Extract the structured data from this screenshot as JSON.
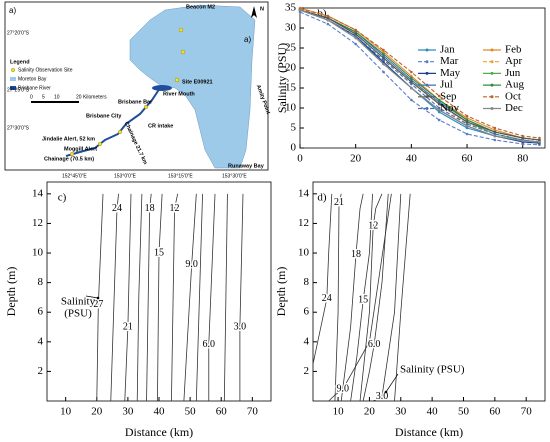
{
  "map": {
    "panel_label": "a)",
    "panel_label_2": "a)",
    "north": "N",
    "places": {
      "beacon": "Beacon M2",
      "site": "Site E00921",
      "mouth": "River Mouth",
      "bar": "Brisbane Bar",
      "intake": "CR intake",
      "city": "Brisbane City",
      "chainage_1": "Chainage 21.7 km",
      "jindalie": "Jindalie Alert, 52 km",
      "moggill": "Moggill Alert",
      "chainage_2": "Chainage (70.5 km)",
      "runaway": "Runaway Bay",
      "amity": "Amity Point"
    },
    "legend": {
      "title": "Legend",
      "items": [
        "Salinity Observation Site",
        "Moreton Bay",
        "Brisbane River"
      ]
    },
    "scale": [
      "0",
      "5",
      "10",
      "20 Kilometers"
    ],
    "lat_labels": [
      "27°20'0\"S",
      "27°25'0\"S",
      "27°30'0\"S"
    ],
    "lon_labels": [
      "152°45'0\"E",
      "153°0'0\"E",
      "153°15'0\"E",
      "153°30'0\"E"
    ]
  },
  "chart_data": [
    {
      "type": "line",
      "panel_label": "b)",
      "ylabel": "Salinity (PSU)",
      "xlim": [
        0,
        88
      ],
      "ylim": [
        0,
        35
      ],
      "xticks": [
        0,
        20,
        40,
        60,
        80
      ],
      "yticks": [
        0,
        5,
        10,
        15,
        20,
        25,
        30,
        35
      ],
      "grid": false,
      "legend": "right",
      "x": [
        0,
        10,
        20,
        30,
        40,
        50,
        60,
        70,
        80,
        86
      ],
      "series": [
        {
          "name": "Jan",
          "color": "#2b8cbe",
          "dash": false,
          "values": [
            34.5,
            32,
            28,
            21,
            15,
            9,
            5,
            3,
            1.8,
            1.5
          ]
        },
        {
          "name": "Feb",
          "color": "#e08a2c",
          "dash": false,
          "values": [
            35,
            33,
            29.5,
            24,
            18,
            12,
            7.5,
            4.5,
            2.5,
            2
          ]
        },
        {
          "name": "Mar",
          "color": "#5b7fc7",
          "dash": true,
          "values": [
            34,
            31,
            26,
            19,
            12,
            7,
            3.5,
            2,
            1,
            0.8
          ]
        },
        {
          "name": "Apr",
          "color": "#f0a030",
          "dash": true,
          "values": [
            34.5,
            32,
            28,
            22,
            17,
            11,
            6,
            3.5,
            2,
            1.5
          ]
        },
        {
          "name": "May",
          "color": "#1f3f8f",
          "dash": false,
          "values": [
            34.5,
            32,
            28,
            21.5,
            15,
            9.5,
            5.5,
            3,
            1.5,
            1.2
          ]
        },
        {
          "name": "Jun",
          "color": "#4daf4a",
          "dash": false,
          "values": [
            34.5,
            32.5,
            28.5,
            22.5,
            16.5,
            11,
            6.5,
            3.5,
            2,
            1.5
          ]
        },
        {
          "name": "Jul",
          "color": "#3a6fc0",
          "dash": false,
          "values": [
            34.5,
            32.5,
            29,
            23,
            17,
            11.5,
            7,
            4,
            2.5,
            2
          ]
        },
        {
          "name": "Aug",
          "color": "#2e8b3e",
          "dash": false,
          "values": [
            34.5,
            32.5,
            29,
            23.5,
            17.5,
            12,
            7,
            4,
            2.5,
            2
          ]
        },
        {
          "name": "Sep",
          "color": "#555555",
          "dash": false,
          "values": [
            34.5,
            32.5,
            28.5,
            22.5,
            16.5,
            11,
            6.5,
            4,
            2.5,
            2
          ]
        },
        {
          "name": "Oct",
          "color": "#c0602a",
          "dash": true,
          "values": [
            34.8,
            33,
            29.5,
            24.5,
            19,
            13,
            8,
            5,
            3,
            2.5
          ]
        },
        {
          "name": "Nov",
          "color": "#4a6fb5",
          "dash": true,
          "values": [
            34.5,
            32,
            28,
            22,
            16,
            10,
            6,
            3.5,
            2,
            1.5
          ]
        },
        {
          "name": "Dec",
          "color": "#888888",
          "dash": false,
          "values": [
            34.5,
            32,
            27.5,
            21,
            15,
            9.5,
            5.5,
            3,
            1.8,
            1.5
          ]
        }
      ]
    },
    {
      "type": "contour",
      "panel_label": "c)",
      "xlabel": "Distance (km)",
      "ylabel": "Depth (m)",
      "xlim": [
        4,
        76
      ],
      "ylim": [
        0,
        14.8
      ],
      "xticks": [
        10,
        20,
        30,
        40,
        50,
        60,
        70
      ],
      "yticks": [
        2,
        4,
        6,
        8,
        10,
        12,
        14
      ],
      "annotation_lines": [
        "Salinity",
        "(PSU)"
      ],
      "levels": [
        {
          "label": "27",
          "x": [
            20,
            20.5,
            22
          ],
          "y": [
            0,
            6.5,
            14
          ]
        },
        {
          "label": "24",
          "x": [
            24.5,
            26.5,
            27
          ],
          "y": [
            0,
            13,
            14
          ]
        },
        {
          "label": "21",
          "x": [
            29,
            30,
            31
          ],
          "y": [
            0,
            5,
            14
          ]
        },
        {
          "x": [
            33,
            33.5,
            34.5
          ],
          "y": [
            0,
            7,
            14
          ]
        },
        {
          "label": "18",
          "x": [
            36,
            37,
            37.5
          ],
          "y": [
            0,
            13,
            14
          ]
        },
        {
          "label": "15",
          "x": [
            39.5,
            40,
            41
          ],
          "y": [
            0,
            10,
            14
          ]
        },
        {
          "label": "12",
          "x": [
            44,
            45,
            46
          ],
          "y": [
            0,
            13,
            14
          ]
        },
        {
          "label": "9.0",
          "x": [
            48,
            50.5,
            52
          ],
          "y": [
            0,
            9.2,
            14
          ]
        },
        {
          "x": [
            52,
            53,
            54
          ],
          "y": [
            0,
            7,
            14
          ]
        },
        {
          "label": "6.0",
          "x": [
            56,
            56,
            58
          ],
          "y": [
            0,
            3.8,
            14
          ]
        },
        {
          "x": [
            61,
            61.5,
            62
          ],
          "y": [
            0,
            7,
            14
          ]
        },
        {
          "label": "3.0",
          "x": [
            66,
            66,
            67
          ],
          "y": [
            0,
            5,
            14
          ]
        }
      ]
    },
    {
      "type": "contour",
      "panel_label": "d)",
      "xlabel": "Distance (km)",
      "ylabel": "Depth (m)",
      "xlim": [
        2,
        76
      ],
      "ylim": [
        0,
        14.8
      ],
      "xticks": [
        10,
        20,
        30,
        40,
        50,
        60,
        70
      ],
      "yticks": [
        2,
        4,
        6,
        8,
        10,
        12,
        14
      ],
      "annotation": "Salinity (PSU)",
      "levels": [
        {
          "label": "24",
          "x": [
            2,
            4,
            6.4,
            7,
            8
          ],
          "y": [
            2.5,
            4.5,
            6.9,
            10,
            14
          ]
        },
        {
          "label": "21",
          "x": [
            9,
            10,
            10.3,
            10.8,
            11
          ],
          "y": [
            0,
            6,
            13.4,
            13.8,
            14
          ]
        },
        {
          "label": "18",
          "x": [
            11,
            14,
            15.7,
            17,
            18
          ],
          "y": [
            0,
            5,
            9.9,
            13,
            14
          ]
        },
        {
          "label": "15",
          "x": [
            14,
            16,
            18,
            20,
            21
          ],
          "y": [
            0,
            3,
            6.8,
            10,
            14
          ]
        },
        {
          "label": "12",
          "x": [
            17,
            20,
            21.2,
            22,
            24
          ],
          "y": [
            0,
            6,
            11.8,
            13,
            14
          ]
        },
        {
          "label": "9.0",
          "x": [
            7,
            9,
            11.5,
            20,
            27
          ],
          "y": [
            0,
            0.4,
            0.8,
            4,
            14
          ]
        },
        {
          "label": "6.0",
          "x": [
            18,
            20,
            21.5,
            24,
            26
          ],
          "y": [
            0,
            2,
            3.8,
            8,
            14
          ]
        },
        {
          "label": "3.0",
          "x": [
            21,
            22.5,
            24,
            28,
            30
          ],
          "y": [
            0,
            0.1,
            0.3,
            6,
            14
          ]
        },
        {
          "x": [
            28,
            30,
            33
          ],
          "y": [
            0,
            6,
            14
          ]
        }
      ]
    }
  ]
}
